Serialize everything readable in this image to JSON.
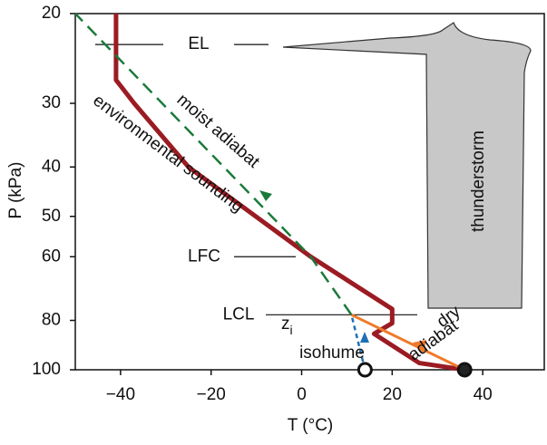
{
  "chart_data": {
    "type": "line",
    "xlabel": "T (°C)",
    "ylabel": "P (kPa)",
    "xlim": [
      -50,
      54
    ],
    "ylim": [
      100,
      20
    ],
    "log_y": true,
    "xticks": [
      {
        "value": -40,
        "label": "−40"
      },
      {
        "value": -20,
        "label": "−20"
      },
      0,
      20,
      40
    ],
    "yticks": [
      20,
      30,
      40,
      50,
      60,
      80,
      100
    ],
    "series": [
      {
        "color": "#9b1b23",
        "dashed": false,
        "x": [
          36,
          26,
          16,
          20,
          20,
          2,
          -25,
          -37,
          -41,
          -41
        ],
        "values": [
          100,
          97,
          85,
          81,
          76,
          60,
          40,
          30,
          27,
          20
        ]
      },
      {
        "color": "#1a7a3a",
        "dashed": true,
        "x": [
          11,
          2,
          -50
        ],
        "values": [
          78,
          60,
          20
        ]
      },
      {
        "color": "#f07a2a",
        "dashed": false,
        "x": [
          36,
          11
        ],
        "values": [
          100,
          78
        ]
      },
      {
        "color": "#1f6fb5",
        "dashed": true,
        "x": [
          14,
          11
        ],
        "values": [
          100,
          78
        ]
      }
    ],
    "points": [
      {
        "x": 14,
        "y": 100,
        "filled": false
      },
      {
        "x": 36,
        "y": 100,
        "filled": true
      }
    ],
    "levels": [
      {
        "text": "EL",
        "value": 23
      },
      {
        "text": "LFC",
        "value": 60
      },
      {
        "text": "LCL",
        "value": 78
      }
    ],
    "labels": [
      "environmental sounding",
      "moist adiabat",
      "dry",
      "adiabat",
      "isohume",
      "thunderstorm"
    ],
    "zi": {
      "text": "z",
      "subscript": "i"
    }
  }
}
